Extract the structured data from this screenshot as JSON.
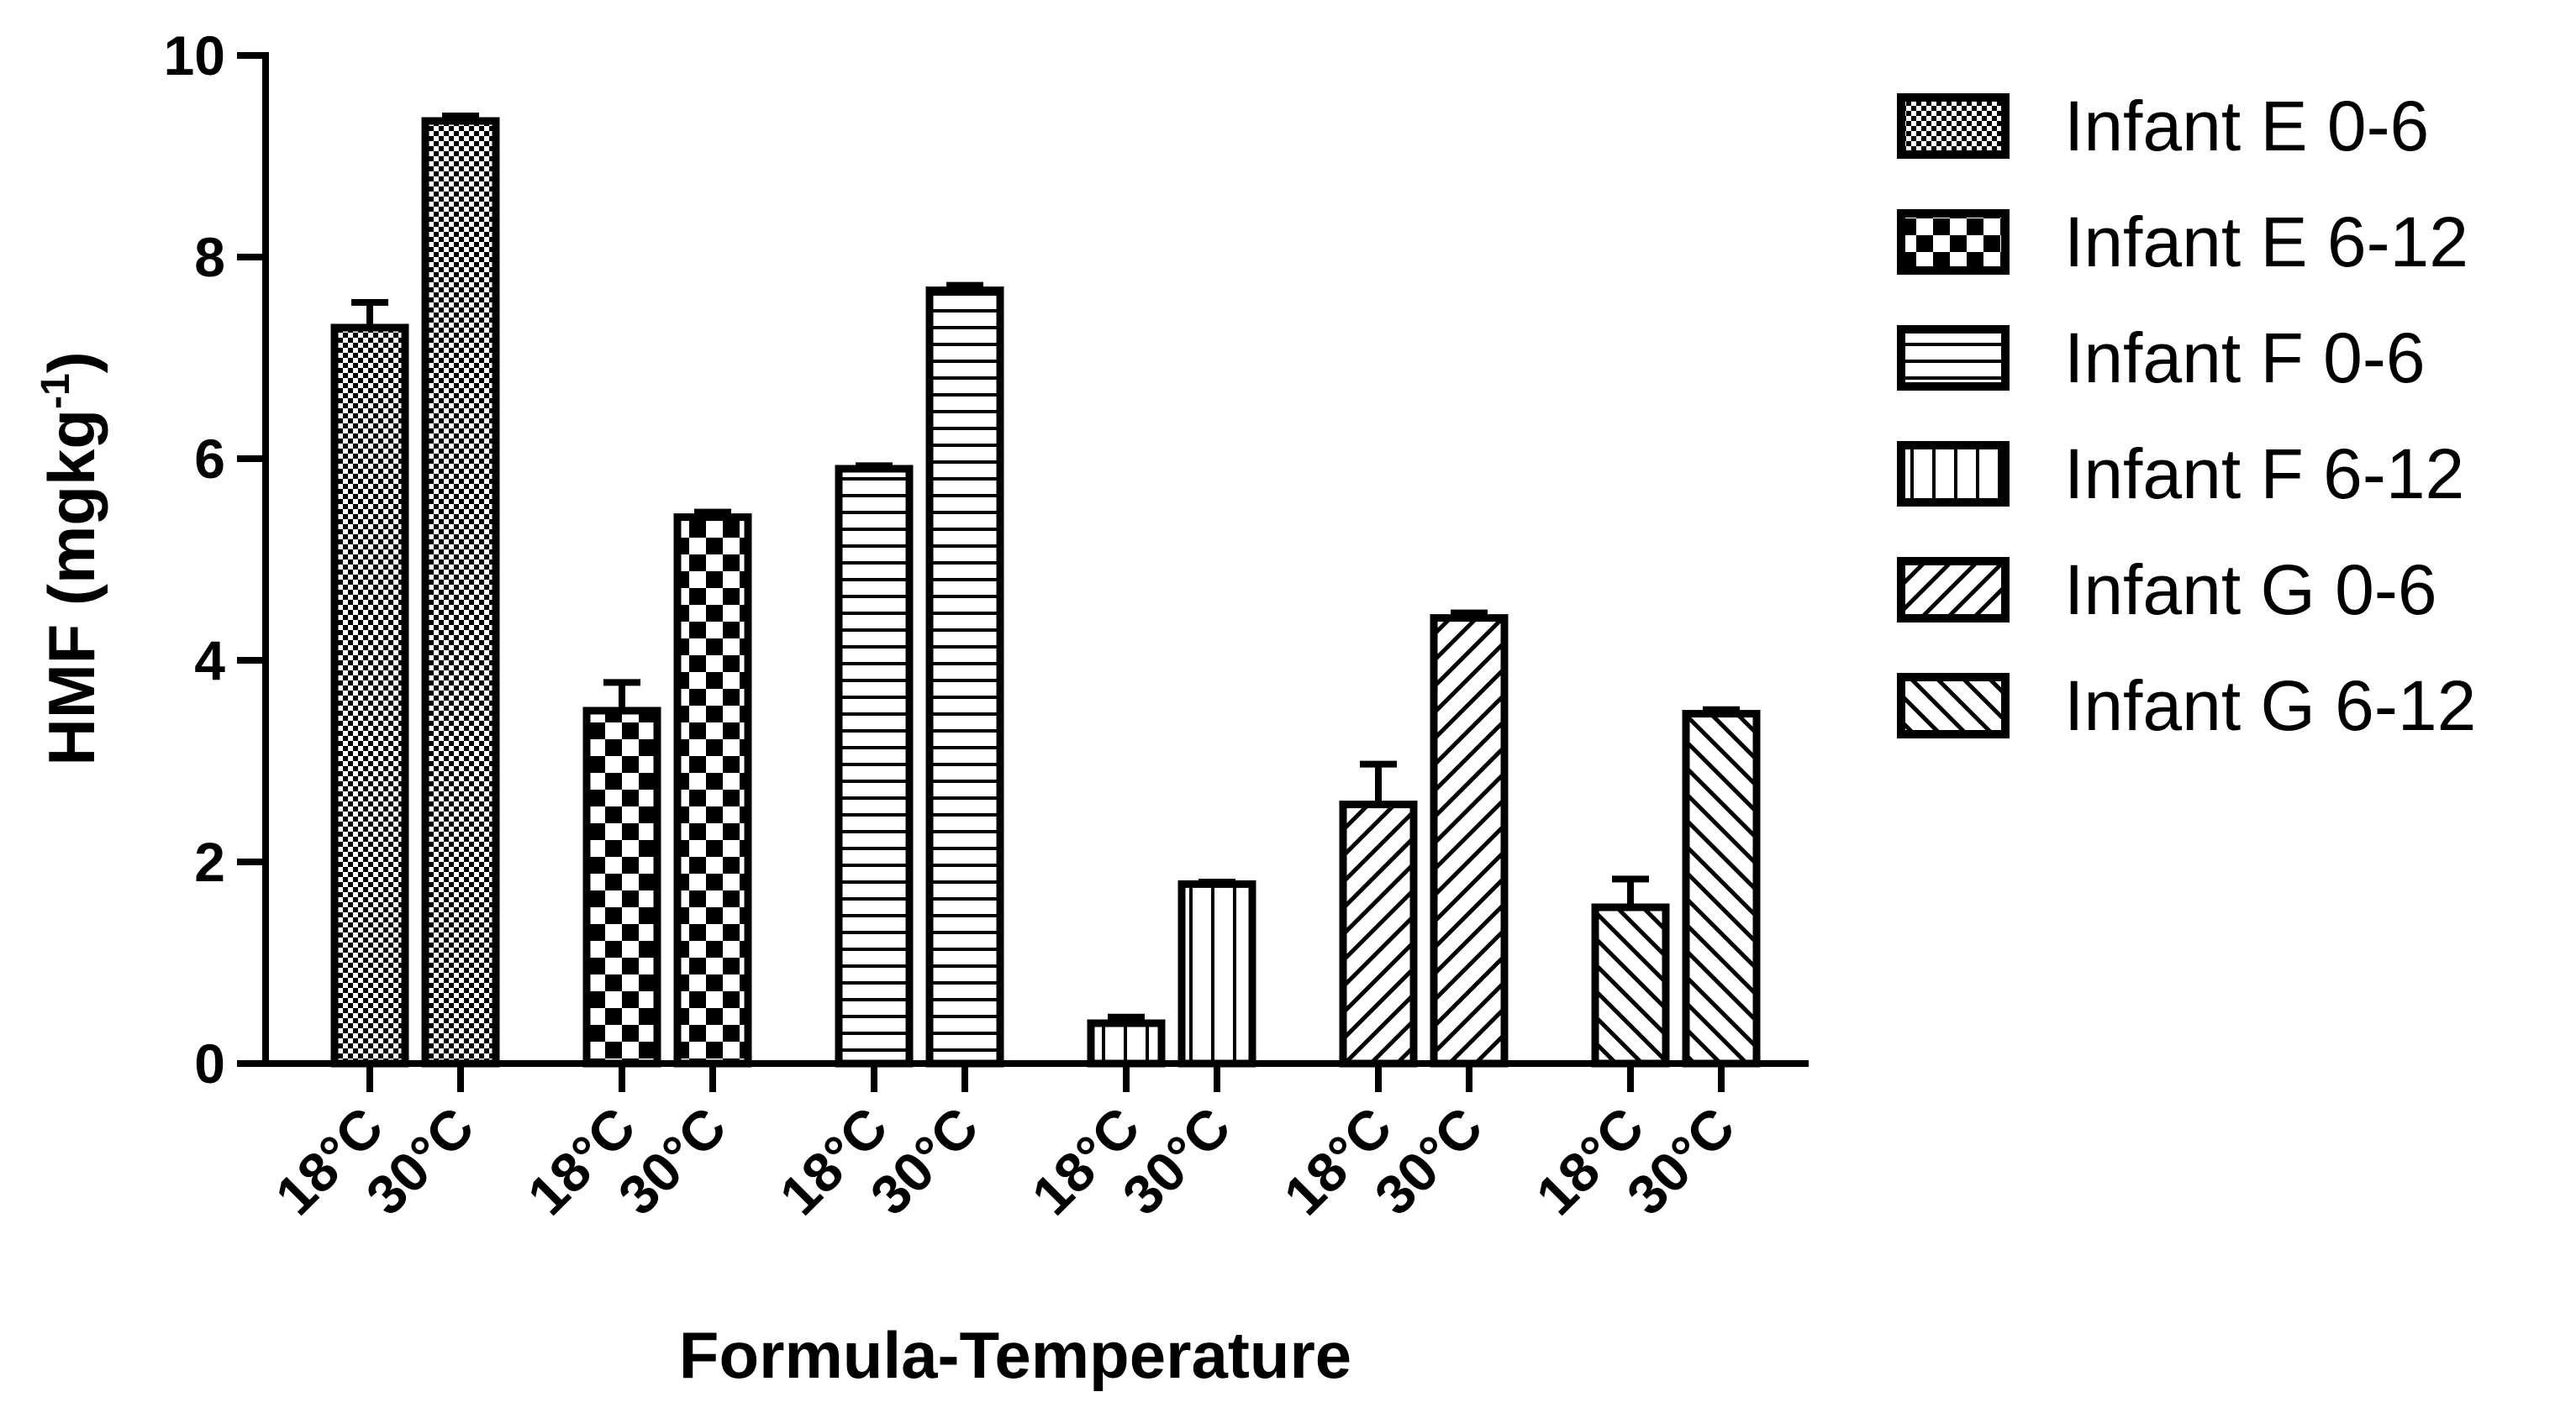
{
  "chart_data": {
    "type": "bar",
    "xlabel": "Formula-Temperature",
    "ylabel": "HMF (mgkg",
    "ylabel_sup": "-1",
    "ylabel_close": ")",
    "ylim": [
      0,
      10
    ],
    "yticks": [
      "0",
      "2",
      "4",
      "6",
      "8",
      "10"
    ],
    "legend_position": "right",
    "series": [
      {
        "name": "Infant E 0-6",
        "pattern": "fine-checker",
        "categories": [
          "18°C",
          "30°C"
        ],
        "values": [
          7.3,
          9.35
        ],
        "errors": [
          0.25,
          0.05
        ]
      },
      {
        "name": "Infant E 6-12",
        "pattern": "coarse-checker",
        "categories": [
          "18°C",
          "30°C"
        ],
        "values": [
          3.5,
          5.42
        ],
        "errors": [
          0.28,
          0.05
        ]
      },
      {
        "name": "Infant F 0-6",
        "pattern": "horizontal-lines",
        "categories": [
          "18°C",
          "30°C"
        ],
        "values": [
          5.9,
          7.67
        ],
        "errors": [
          0.03,
          0.05
        ]
      },
      {
        "name": "Infant F 6-12",
        "pattern": "vertical-lines",
        "categories": [
          "18°C",
          "30°C"
        ],
        "values": [
          0.4,
          1.78
        ],
        "errors": [
          0.06,
          0.02
        ]
      },
      {
        "name": "Infant G 0-6",
        "pattern": "diagonal-up",
        "categories": [
          "18°C",
          "30°C"
        ],
        "values": [
          2.57,
          4.42
        ],
        "errors": [
          0.4,
          0.05
        ]
      },
      {
        "name": "Infant G 6-12",
        "pattern": "diagonal-down",
        "categories": [
          "18°C",
          "30°C"
        ],
        "values": [
          1.55,
          3.47
        ],
        "errors": [
          0.28,
          0.04
        ]
      }
    ]
  }
}
